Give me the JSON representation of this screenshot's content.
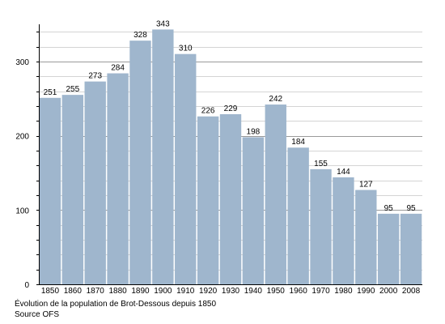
{
  "chart_data": {
    "type": "bar",
    "categories": [
      "1850",
      "1860",
      "1870",
      "1880",
      "1890",
      "1900",
      "1910",
      "1920",
      "1930",
      "1940",
      "1950",
      "1960",
      "1970",
      "1980",
      "1990",
      "2000",
      "2008"
    ],
    "values": [
      251,
      255,
      273,
      284,
      328,
      343,
      310,
      226,
      229,
      198,
      242,
      184,
      155,
      144,
      127,
      95,
      95
    ],
    "ylim": [
      0,
      350
    ],
    "yticks": [
      0,
      100,
      200,
      300
    ],
    "grid": true,
    "bar_color": "#9fb6cd"
  },
  "caption": {
    "line1": "Évolution de la population de Brot-Dessous depuis 1850",
    "line2": "Source OFS"
  }
}
